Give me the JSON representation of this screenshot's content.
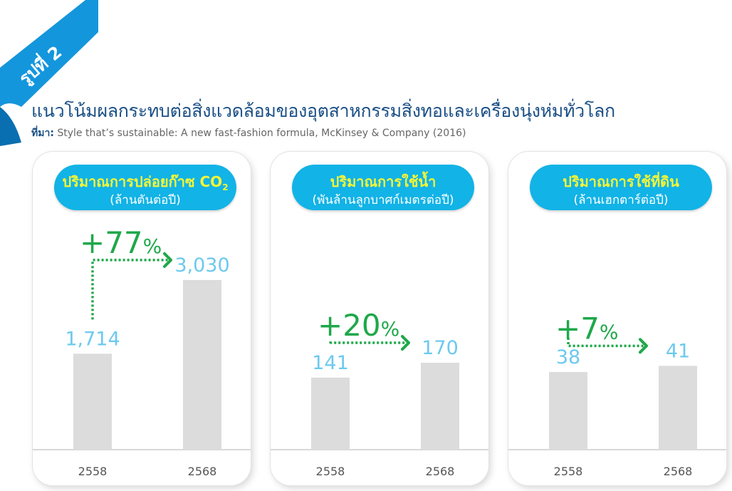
{
  "figure": {
    "badge": "รูปที่ 2",
    "title": "แนวโน้มผลกระทบต่อสิ่งแวดล้อมของอุตสาหกรรมสิ่งทอและเครื่องนุ่งห่มทั่วโลก",
    "source_label": "ที่มา:",
    "source_text": " Style that’s sustainable: A new fast-fashion formula, McKinsey & Company (2016)"
  },
  "colors": {
    "title": "#1a4f86",
    "pill": "#12b3e6",
    "pill_title": "#f5f535",
    "value_label": "#6dc9ee",
    "change": "#1ea84a",
    "bar": "#dcdcdc"
  },
  "chart_data": [
    {
      "type": "bar",
      "title": "ปริมาณการปล่อยก๊าซ CO",
      "title_sub": "2",
      "unit": "(ล้านตันต่อปี)",
      "categories": [
        "2558",
        "2568"
      ],
      "values": [
        1714,
        3030
      ],
      "value_labels": [
        "1,714",
        "3,030"
      ],
      "change_label": "+77",
      "change_symbol": "%"
    },
    {
      "type": "bar",
      "title": "ปริมาณการใช้น้ำ",
      "title_sub": "",
      "unit": "(พันล้านลูกบาศก์เมตรต่อปี)",
      "categories": [
        "2558",
        "2568"
      ],
      "values": [
        141,
        170
      ],
      "value_labels": [
        "141",
        "170"
      ],
      "change_label": "+20",
      "change_symbol": "%"
    },
    {
      "type": "bar",
      "title": "ปริมาณการใช้ที่ดิน",
      "title_sub": "",
      "unit": "(ล้านเฮกตาร์ต่อปี)",
      "categories": [
        "2558",
        "2568"
      ],
      "values": [
        38,
        41
      ],
      "value_labels": [
        "38",
        "41"
      ],
      "change_label": "+7",
      "change_symbol": "%"
    }
  ]
}
